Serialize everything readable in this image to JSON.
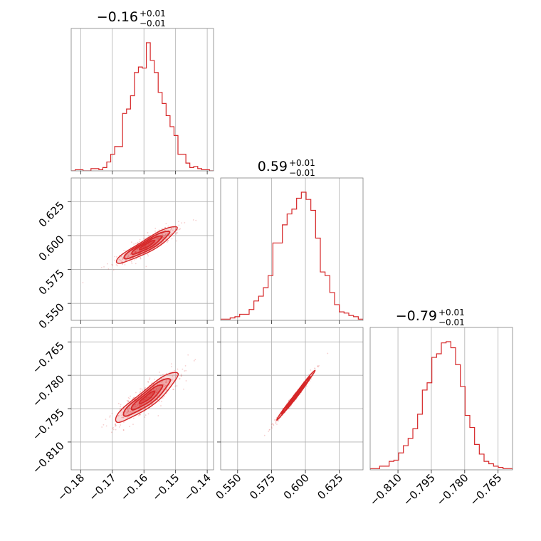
{
  "chart_data": {
    "type": "corner",
    "color": "#d62728",
    "grid": true,
    "parameters": [
      {
        "title": {
          "median": "−0.16",
          "plus": "+0.01",
          "minus": "−0.01"
        },
        "range": [
          -0.183,
          -0.138
        ],
        "ticks": [
          {
            "value": -0.18,
            "label": "−0.18"
          },
          {
            "value": -0.17,
            "label": "−0.17"
          },
          {
            "value": -0.16,
            "label": "−0.16"
          },
          {
            "value": -0.15,
            "label": "−0.15"
          },
          {
            "value": -0.14,
            "label": "−0.14"
          }
        ],
        "histogram": {
          "counts": [
            0,
            1,
            1,
            0,
            0,
            2,
            2,
            1,
            3,
            8,
            15,
            22,
            22,
            52,
            56,
            68,
            89,
            94,
            93,
            116,
            100,
            89,
            71,
            61,
            50,
            40,
            32,
            15,
            15,
            7,
            3,
            4,
            2,
            1,
            1,
            0
          ]
        }
      },
      {
        "title": {
          "median": "0.59",
          "plus": "+0.01",
          "minus": "−0.01"
        },
        "range": [
          0.5375,
          0.6425
        ],
        "ticks": [
          {
            "value": 0.55,
            "label": "0.550"
          },
          {
            "value": 0.575,
            "label": "0.575"
          },
          {
            "value": 0.6,
            "label": "0.600"
          },
          {
            "value": 0.625,
            "label": "0.625"
          }
        ],
        "histogram": {
          "counts": [
            1,
            1,
            2,
            3,
            5,
            5,
            9,
            16,
            20,
            27,
            37,
            64,
            64,
            79,
            88,
            92,
            101,
            106,
            100,
            91,
            68,
            40,
            37,
            23,
            13,
            7,
            6,
            4,
            3,
            1
          ]
        }
      },
      {
        "title": {
          "median": "−0.79",
          "plus": "+0.01",
          "minus": "−0.01"
        },
        "range": [
          -0.8225,
          -0.7585
        ],
        "ticks": [
          {
            "value": -0.81,
            "label": "−0.810"
          },
          {
            "value": -0.795,
            "label": "−0.795"
          },
          {
            "value": -0.78,
            "label": "−0.780"
          },
          {
            "value": -0.765,
            "label": "−0.765"
          }
        ],
        "histogram": {
          "counts": [
            1,
            1,
            3,
            3,
            7,
            8,
            14,
            20,
            26,
            34,
            46,
            66,
            72,
            93,
            96,
            105,
            106,
            101,
            87,
            69,
            45,
            35,
            21,
            13,
            7,
            5,
            3,
            2,
            1,
            1
          ]
        }
      }
    ],
    "pairs": [
      {
        "x_param": 0,
        "y_param": 1,
        "center": [
          -0.159,
          0.593
        ],
        "slope": 1.45,
        "sd_major": 0.0068,
        "sd_minor": 0.0013,
        "x_extent": [
          -0.172,
          -0.146
        ]
      },
      {
        "x_param": 0,
        "y_param": 2,
        "center": [
          -0.159,
          -0.79
        ],
        "slope": 1.15,
        "sd_major": 0.0061,
        "sd_minor": 0.0013,
        "x_extent": [
          -0.172,
          -0.146
        ]
      },
      {
        "x_param": 1,
        "y_param": 2,
        "center": [
          0.593,
          -0.789
        ],
        "slope": 0.79,
        "sd_major": 0.0075,
        "sd_minor": 0.0004,
        "x_extent": [
          0.55,
          0.636
        ]
      }
    ]
  }
}
